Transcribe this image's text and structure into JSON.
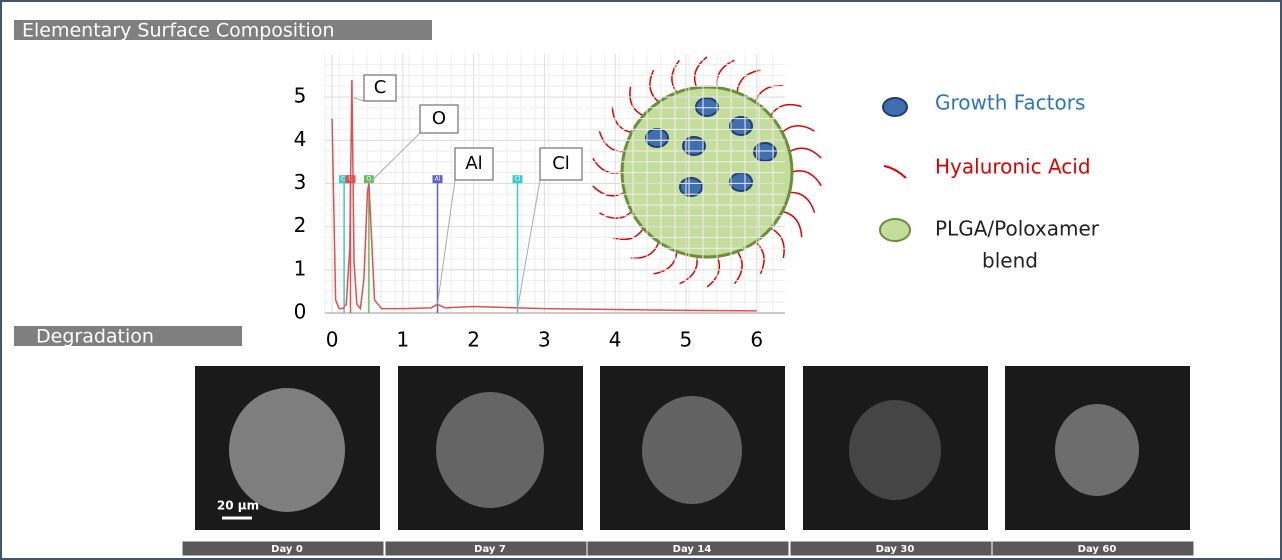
{
  "sections": [
    "Elementary Surface  Composition",
    "Degradation"
  ],
  "chart_data": {
    "type": "line",
    "x": [
      0,
      0.05,
      0.1,
      0.15,
      0.2,
      0.25,
      0.28,
      0.31,
      0.35,
      0.4,
      0.45,
      0.5,
      0.52,
      0.55,
      0.6,
      0.7,
      1.0,
      1.4,
      1.49,
      1.6,
      2.0,
      3.0,
      4.0,
      5.0,
      6.0
    ],
    "series": [
      {
        "color": "#e05050",
        "values": [
          4.5,
          0.3,
          0.1,
          0.1,
          0.2,
          1.5,
          5.4,
          1.2,
          0.2,
          0.1,
          0.8,
          2.8,
          3.0,
          2.0,
          0.3,
          0.1,
          0.1,
          0.12,
          0.2,
          0.12,
          0.15,
          0.1,
          0.08,
          0.06,
          0.05
        ]
      }
    ],
    "xlim": [
      -0.1,
      6.4
    ],
    "ylim": [
      0,
      6
    ],
    "xticks": [
      0,
      1,
      2,
      3,
      4,
      5,
      6
    ],
    "yticks": [
      0,
      1,
      2,
      3,
      4,
      5
    ],
    "grid": true,
    "element_markers": [
      {
        "label": "Cl",
        "x": 0.17,
        "height": 3.1,
        "color": "#40c8d0"
      },
      {
        "label": "C",
        "x": 0.26,
        "height": 3.1,
        "color": "#e05050"
      },
      {
        "label": "O",
        "x": 0.52,
        "height": 3.1,
        "color": "#60c060"
      },
      {
        "label": "Al",
        "x": 1.49,
        "height": 3.1,
        "color": "#6060d0"
      },
      {
        "label": "Cl",
        "x": 2.62,
        "height": 3.1,
        "color": "#40c8d0"
      }
    ],
    "annotations": [
      {
        "text": "C",
        "x": 0.28,
        "y": 5.0
      },
      {
        "text": "O",
        "x": 0.52,
        "y": 3.0
      },
      {
        "text": "Al",
        "x": 1.49,
        "y": 0.2
      },
      {
        "text": "Cl",
        "x": 2.62,
        "y": 0.1
      }
    ]
  },
  "legend": {
    "items": [
      "Growth Factors",
      "Hyaluronic Acid",
      "PLGA/Poloxamer"
    ],
    "continuation": "blend"
  },
  "degradation": {
    "days": [
      "Day 0",
      "Day 7",
      "Day 14",
      "Day 30",
      "Day 60"
    ],
    "scale_bar": "20 µm"
  }
}
